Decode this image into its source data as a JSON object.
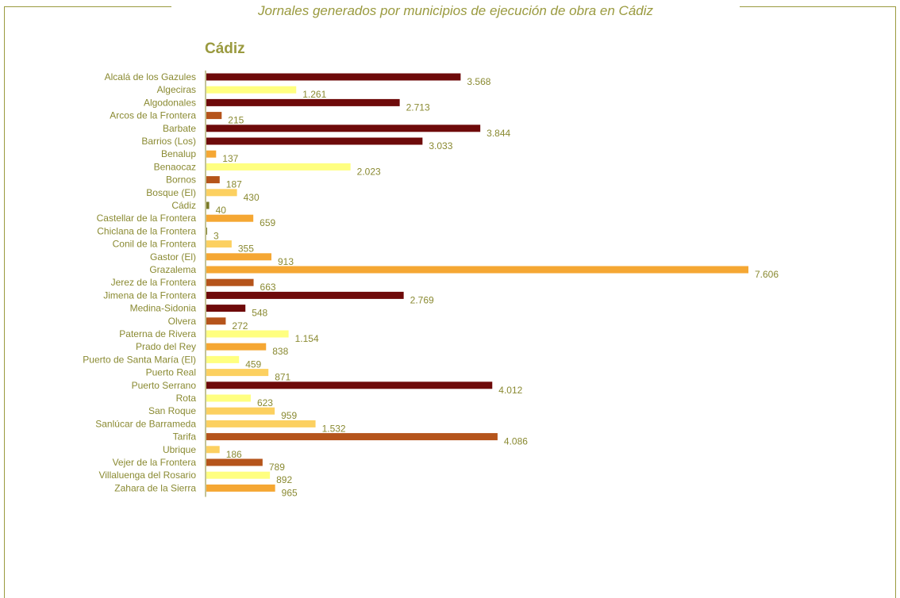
{
  "page_title": "Jornales generados por municipios de ejecución de obra en Cádiz",
  "chart_data": {
    "type": "bar",
    "orientation": "horizontal",
    "title": "Cádiz",
    "xlabel": "",
    "ylabel": "",
    "xlim": [
      0,
      7606
    ],
    "grid": false,
    "legend": "none",
    "categories": [
      "Alcalá de los Gazules",
      "Algeciras",
      "Algodonales",
      "Arcos de la Frontera",
      "Barbate",
      "Barrios (Los)",
      "Benalup",
      "Benaocaz",
      "Bornos",
      "Bosque (El)",
      "Cádiz",
      "Castellar de la Frontera",
      "Chiclana de la Frontera",
      "Conil de la Frontera",
      "Gastor (El)",
      "Grazalema",
      "Jerez de la Frontera",
      "Jimena de la Frontera",
      "Medina-Sidonia",
      "Olvera",
      "Paterna de Rivera",
      "Prado del Rey",
      "Puerto de Santa María (El)",
      "Puerto Real",
      "Puerto Serrano",
      "Rota",
      "San Roque",
      "Sanlúcar de Barrameda",
      "Tarifa",
      "Ubrique",
      "Vejer de la Frontera",
      "Villaluenga del Rosario",
      "Zahara de la Sierra"
    ],
    "values": [
      3568,
      1261,
      2713,
      215,
      3844,
      3033,
      137,
      2023,
      187,
      430,
      40,
      659,
      3,
      355,
      913,
      7606,
      663,
      2769,
      548,
      272,
      1154,
      838,
      459,
      871,
      4012,
      623,
      959,
      1532,
      4086,
      186,
      789,
      892,
      965
    ],
    "value_labels": [
      "3.568",
      "1.261",
      "2.713",
      "215",
      "3.844",
      "3.033",
      "137",
      "2.023",
      "187",
      "430",
      "40",
      "659",
      "3",
      "355",
      "913",
      "7.606",
      "663",
      "2.769",
      "548",
      "272",
      "1.154",
      "838",
      "459",
      "871",
      "4.012",
      "623",
      "959",
      "1.532",
      "4.086",
      "186",
      "789",
      "892",
      "965"
    ],
    "colors": [
      "#6e0a0a",
      "#ffff80",
      "#6e0a0a",
      "#b5541b",
      "#6e0a0a",
      "#6e0a0a",
      "#f5a733",
      "#ffff80",
      "#b5541b",
      "#fcd060",
      "#7a7a28",
      "#f5a733",
      "#7a7a28",
      "#fcd060",
      "#f5a733",
      "#f5a733",
      "#b5541b",
      "#6e0a0a",
      "#6e0a0a",
      "#b5541b",
      "#ffff80",
      "#f5a733",
      "#ffff80",
      "#fcd060",
      "#6e0a0a",
      "#ffff80",
      "#fcd060",
      "#fcd060",
      "#b5541b",
      "#fcd060",
      "#b5541b",
      "#ffff80",
      "#f5a733"
    ]
  }
}
